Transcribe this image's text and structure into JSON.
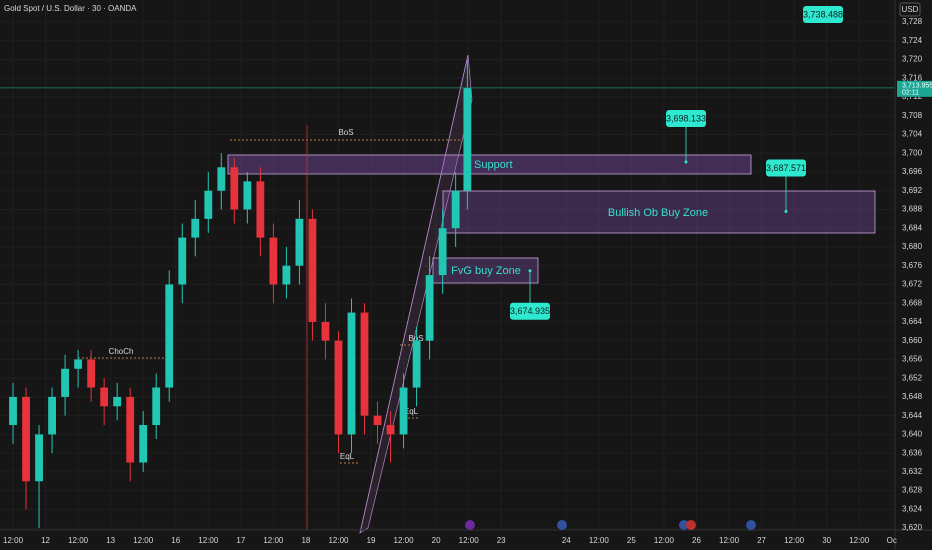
{
  "chart_data": {
    "type": "candlestick",
    "title": "Gold Spot / U.S. Dollar · 30 · OANDA",
    "currency": "USD",
    "x": [
      0,
      0.4,
      0.8,
      1.2,
      1.6,
      2.0,
      2.4,
      2.8,
      3.2,
      3.6,
      4.0,
      4.4,
      4.8,
      5.2,
      5.6,
      6.0,
      6.4,
      6.8,
      7.2,
      7.6,
      8.0,
      8.4,
      8.8,
      9.2,
      9.6,
      10.0,
      10.4,
      10.8,
      11.2,
      11.6,
      12.0,
      12.4,
      12.8,
      13.2,
      13.6,
      13.96
    ],
    "open": [
      3642,
      3648,
      3630,
      3640,
      3648,
      3654,
      3656,
      3650,
      3646,
      3648,
      3634,
      3642,
      3650,
      3672,
      3682,
      3686,
      3692,
      3697,
      3688,
      3694,
      3682,
      3672,
      3676,
      3686,
      3664,
      3660,
      3640,
      3666,
      3644,
      3642,
      3640,
      3650,
      3660,
      3674,
      3684,
      3692
    ],
    "high": [
      3651,
      3650,
      3642,
      3650,
      3657,
      3658,
      3658,
      3652,
      3651,
      3650,
      3645,
      3653,
      3675,
      3685,
      3690,
      3696,
      3700,
      3699,
      3696,
      3697,
      3685,
      3680,
      3690,
      3688,
      3668,
      3662,
      3669,
      3668,
      3647,
      3645,
      3653,
      3663,
      3678,
      3688,
      3696,
      3720
    ],
    "low": [
      3638,
      3624,
      3620,
      3636,
      3644,
      3650,
      3647,
      3642,
      3643,
      3630,
      3632,
      3639,
      3647,
      3668,
      3678,
      3683,
      3688,
      3685,
      3685,
      3678,
      3668,
      3669,
      3672,
      3660,
      3656,
      3636,
      3636,
      3640,
      3638,
      3634,
      3637,
      3646,
      3656,
      3670,
      3680,
      3688
    ],
    "close": [
      3648,
      3630,
      3640,
      3648,
      3654,
      3656,
      3650,
      3646,
      3648,
      3634,
      3642,
      3650,
      3672,
      3682,
      3686,
      3692,
      3697,
      3688,
      3694,
      3682,
      3672,
      3676,
      3686,
      3664,
      3660,
      3640,
      3666,
      3644,
      3642,
      3640,
      3650,
      3660,
      3674,
      3684,
      3692,
      3714
    ],
    "up_color": "#22c7b3",
    "down_color": "#e8323c",
    "xlim": [
      -0.4,
      27.1
    ],
    "xticks": [
      {
        "value": 0,
        "label": "12:00"
      },
      {
        "value": 1,
        "label": "12"
      },
      {
        "value": 2,
        "label": "12:00"
      },
      {
        "value": 3,
        "label": "13"
      },
      {
        "value": 4,
        "label": "12:00"
      },
      {
        "value": 5,
        "label": "16"
      },
      {
        "value": 6,
        "label": "12:00"
      },
      {
        "value": 7,
        "label": "17"
      },
      {
        "value": 8,
        "label": "12:00"
      },
      {
        "value": 9,
        "label": "18"
      },
      {
        "value": 10,
        "label": "12:00"
      },
      {
        "value": 11,
        "label": "19"
      },
      {
        "value": 12,
        "label": "12:00"
      },
      {
        "value": 13,
        "label": "20"
      },
      {
        "value": 14,
        "label": "12:00"
      },
      {
        "value": 15,
        "label": "23"
      },
      {
        "value": 17,
        "label": "24"
      },
      {
        "value": 18,
        "label": "12:00"
      },
      {
        "value": 19,
        "label": "25"
      },
      {
        "value": 20,
        "label": "12:00"
      },
      {
        "value": 21,
        "label": "26"
      },
      {
        "value": 22,
        "label": "12:00"
      },
      {
        "value": 23,
        "label": "27"
      },
      {
        "value": 24,
        "label": "12:00"
      },
      {
        "value": 25,
        "label": "30"
      },
      {
        "value": 26,
        "label": "12:00"
      },
      {
        "value": 27,
        "label": "Oc"
      }
    ],
    "ylim": [
      3619.6,
      3732.7
    ],
    "yticks": [
      {
        "value": 3620,
        "label": "3,620"
      },
      {
        "value": 3624,
        "label": "3,624"
      },
      {
        "value": 3628,
        "label": "3,628"
      },
      {
        "value": 3632,
        "label": "3,632"
      },
      {
        "value": 3636,
        "label": "3,636"
      },
      {
        "value": 3640,
        "label": "3,640"
      },
      {
        "value": 3644,
        "label": "3,644"
      },
      {
        "value": 3648,
        "label": "3,648"
      },
      {
        "value": 3652,
        "label": "3,652"
      },
      {
        "value": 3656,
        "label": "3,656"
      },
      {
        "value": 3660,
        "label": "3,660"
      },
      {
        "value": 3664,
        "label": "3,664"
      },
      {
        "value": 3668,
        "label": "3,668"
      },
      {
        "value": 3672,
        "label": "3,672"
      },
      {
        "value": 3676,
        "label": "3,676"
      },
      {
        "value": 3680,
        "label": "3,680"
      },
      {
        "value": 3684,
        "label": "3,684"
      },
      {
        "value": 3688,
        "label": "3,688"
      },
      {
        "value": 3692,
        "label": "3,692"
      },
      {
        "value": 3696,
        "label": "3,696"
      },
      {
        "value": 3700,
        "label": "3,700"
      },
      {
        "value": 3704,
        "label": "3,704"
      },
      {
        "value": 3708,
        "label": "3,708"
      },
      {
        "value": 3712,
        "label": "3,712"
      },
      {
        "value": 3716,
        "label": "3,716"
      },
      {
        "value": 3720,
        "label": "3,720"
      },
      {
        "value": 3724,
        "label": "3,724"
      },
      {
        "value": 3728,
        "label": "3,728"
      }
    ],
    "last_price": {
      "value": 3713.955,
      "label": "3,713.955",
      "countdown": "02:11"
    },
    "targets": [
      {
        "value": 3698.133,
        "label": "3,698.133"
      },
      {
        "value": 3687.571,
        "label": "3,687.571"
      },
      {
        "value": 3674.935,
        "label": "3,674.935"
      }
    ],
    "top_target": "3,738.488",
    "zones": {
      "support": "Support",
      "bullish_ob": "Bullish Ob Buy Zone",
      "fvg": "FvG buy Zone"
    },
    "annotations": {
      "bos_top": "BoS",
      "choch": "ChoCh",
      "eql_low": "EqL",
      "bos_right": "BoS",
      "eql_right": "EqL"
    }
  }
}
